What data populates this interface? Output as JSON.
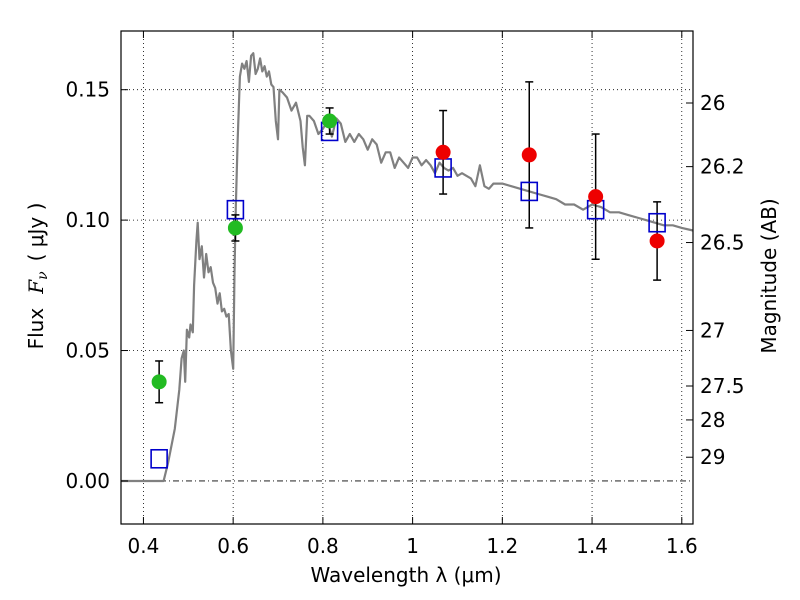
{
  "chart_data": {
    "type": "scatter",
    "xlabel": "Wavelength  λ (μm)",
    "ylabel_text": "Flux",
    "ylabel_symbol": "F",
    "ylabel_subscript": "ν",
    "ylabel_unit": "( μJy )",
    "y2label": "Magnitude (AB)",
    "xlim": [
      0.35,
      1.625
    ],
    "ylim": [
      -0.0165,
      0.1725
    ],
    "xticks": [
      0.4,
      0.6,
      0.8,
      1.0,
      1.2,
      1.4,
      1.6
    ],
    "xtick_labels": [
      "0.4",
      "0.6",
      "0.8",
      "1",
      "1.2",
      "1.4",
      "1.6"
    ],
    "yticks": [
      0.0,
      0.05,
      0.1,
      0.15
    ],
    "ytick_labels": [
      "0.00",
      "0.05",
      "0.10",
      "0.15"
    ],
    "y2ticks": [
      {
        "label": "26",
        "flux": 0.1449
      },
      {
        "label": "26.2",
        "flux": 0.1205
      },
      {
        "label": "26.5",
        "flux": 0.0914
      },
      {
        "label": "27",
        "flux": 0.0577
      },
      {
        "label": "27.5",
        "flux": 0.0364
      },
      {
        "label": "28",
        "flux": 0.0234
      },
      {
        "label": "29",
        "flux": 0.0091
      }
    ],
    "grid": true,
    "colors": {
      "model": "#808080",
      "green": "#22bb22",
      "red": "#ee0000",
      "box": "#0000cc",
      "errorbar": "#000000"
    },
    "model_spectrum": [
      [
        0.35,
        0.0
      ],
      [
        0.43,
        0.0
      ],
      [
        0.445,
        0.0
      ],
      [
        0.455,
        0.007
      ],
      [
        0.47,
        0.02
      ],
      [
        0.48,
        0.035
      ],
      [
        0.485,
        0.047
      ],
      [
        0.49,
        0.05
      ],
      [
        0.493,
        0.038
      ],
      [
        0.497,
        0.058
      ],
      [
        0.502,
        0.055
      ],
      [
        0.505,
        0.06
      ],
      [
        0.51,
        0.057
      ],
      [
        0.513,
        0.075
      ],
      [
        0.518,
        0.092
      ],
      [
        0.521,
        0.099
      ],
      [
        0.525,
        0.085
      ],
      [
        0.53,
        0.09
      ],
      [
        0.535,
        0.078
      ],
      [
        0.54,
        0.087
      ],
      [
        0.545,
        0.08
      ],
      [
        0.55,
        0.082
      ],
      [
        0.555,
        0.076
      ],
      [
        0.56,
        0.074
      ],
      [
        0.565,
        0.068
      ],
      [
        0.57,
        0.072
      ],
      [
        0.575,
        0.065
      ],
      [
        0.58,
        0.066
      ],
      [
        0.585,
        0.063
      ],
      [
        0.59,
        0.064
      ],
      [
        0.595,
        0.05
      ],
      [
        0.6,
        0.043
      ],
      [
        0.603,
        0.08
      ],
      [
        0.606,
        0.105
      ],
      [
        0.61,
        0.13
      ],
      [
        0.615,
        0.155
      ],
      [
        0.62,
        0.16
      ],
      [
        0.625,
        0.158
      ],
      [
        0.63,
        0.161
      ],
      [
        0.635,
        0.153
      ],
      [
        0.64,
        0.163
      ],
      [
        0.645,
        0.164
      ],
      [
        0.65,
        0.156
      ],
      [
        0.655,
        0.158
      ],
      [
        0.66,
        0.162
      ],
      [
        0.665,
        0.157
      ],
      [
        0.67,
        0.159
      ],
      [
        0.675,
        0.155
      ],
      [
        0.68,
        0.157
      ],
      [
        0.685,
        0.152
      ],
      [
        0.69,
        0.151
      ],
      [
        0.695,
        0.138
      ],
      [
        0.7,
        0.131
      ],
      [
        0.703,
        0.15
      ],
      [
        0.71,
        0.149
      ],
      [
        0.72,
        0.147
      ],
      [
        0.73,
        0.142
      ],
      [
        0.74,
        0.145
      ],
      [
        0.75,
        0.138
      ],
      [
        0.755,
        0.128
      ],
      [
        0.76,
        0.121
      ],
      [
        0.765,
        0.14
      ],
      [
        0.77,
        0.14
      ],
      [
        0.78,
        0.138
      ],
      [
        0.79,
        0.133
      ],
      [
        0.8,
        0.135
      ],
      [
        0.81,
        0.138
      ],
      [
        0.82,
        0.132
      ],
      [
        0.83,
        0.139
      ],
      [
        0.84,
        0.137
      ],
      [
        0.85,
        0.13
      ],
      [
        0.86,
        0.133
      ],
      [
        0.87,
        0.13
      ],
      [
        0.88,
        0.133
      ],
      [
        0.89,
        0.131
      ],
      [
        0.9,
        0.127
      ],
      [
        0.91,
        0.131
      ],
      [
        0.92,
        0.129
      ],
      [
        0.93,
        0.122
      ],
      [
        0.94,
        0.126
      ],
      [
        0.95,
        0.126
      ],
      [
        0.96,
        0.12
      ],
      [
        0.97,
        0.124
      ],
      [
        0.98,
        0.122
      ],
      [
        0.99,
        0.12
      ],
      [
        1.0,
        0.124
      ],
      [
        1.01,
        0.124
      ],
      [
        1.02,
        0.121
      ],
      [
        1.03,
        0.123
      ],
      [
        1.04,
        0.121
      ],
      [
        1.05,
        0.118
      ],
      [
        1.06,
        0.122
      ],
      [
        1.07,
        0.12
      ],
      [
        1.08,
        0.119
      ],
      [
        1.09,
        0.12
      ],
      [
        1.1,
        0.117
      ],
      [
        1.11,
        0.118
      ],
      [
        1.12,
        0.117
      ],
      [
        1.13,
        0.116
      ],
      [
        1.14,
        0.113
      ],
      [
        1.15,
        0.121
      ],
      [
        1.16,
        0.113
      ],
      [
        1.17,
        0.112
      ],
      [
        1.18,
        0.114
      ],
      [
        1.2,
        0.114
      ],
      [
        1.22,
        0.113
      ],
      [
        1.24,
        0.112
      ],
      [
        1.26,
        0.111
      ],
      [
        1.28,
        0.11
      ],
      [
        1.3,
        0.109
      ],
      [
        1.32,
        0.108
      ],
      [
        1.34,
        0.106
      ],
      [
        1.36,
        0.106
      ],
      [
        1.38,
        0.104
      ],
      [
        1.4,
        0.106
      ],
      [
        1.42,
        0.105
      ],
      [
        1.44,
        0.103
      ],
      [
        1.46,
        0.103
      ],
      [
        1.48,
        0.102
      ],
      [
        1.5,
        0.101
      ],
      [
        1.52,
        0.1
      ],
      [
        1.54,
        0.099
      ],
      [
        1.56,
        0.098
      ],
      [
        1.58,
        0.098
      ],
      [
        1.6,
        0.097
      ],
      [
        1.625,
        0.096
      ]
    ],
    "observed_green": [
      {
        "x": 0.435,
        "y": 0.038,
        "err": 0.008
      },
      {
        "x": 0.605,
        "y": 0.097,
        "err": 0.005
      },
      {
        "x": 0.815,
        "y": 0.138,
        "err": 0.005
      }
    ],
    "observed_red": [
      {
        "x": 1.068,
        "y": 0.126,
        "err": 0.016
      },
      {
        "x": 1.26,
        "y": 0.125,
        "err": 0.028
      },
      {
        "x": 1.408,
        "y": 0.109,
        "err": 0.024
      },
      {
        "x": 1.545,
        "y": 0.092,
        "err": 0.015
      }
    ],
    "model_boxes": [
      {
        "x": 0.435,
        "y": 0.0085
      },
      {
        "x": 0.605,
        "y": 0.104
      },
      {
        "x": 0.815,
        "y": 0.134
      },
      {
        "x": 1.068,
        "y": 0.12
      },
      {
        "x": 1.26,
        "y": 0.111
      },
      {
        "x": 1.408,
        "y": 0.104
      },
      {
        "x": 1.545,
        "y": 0.099
      }
    ]
  }
}
